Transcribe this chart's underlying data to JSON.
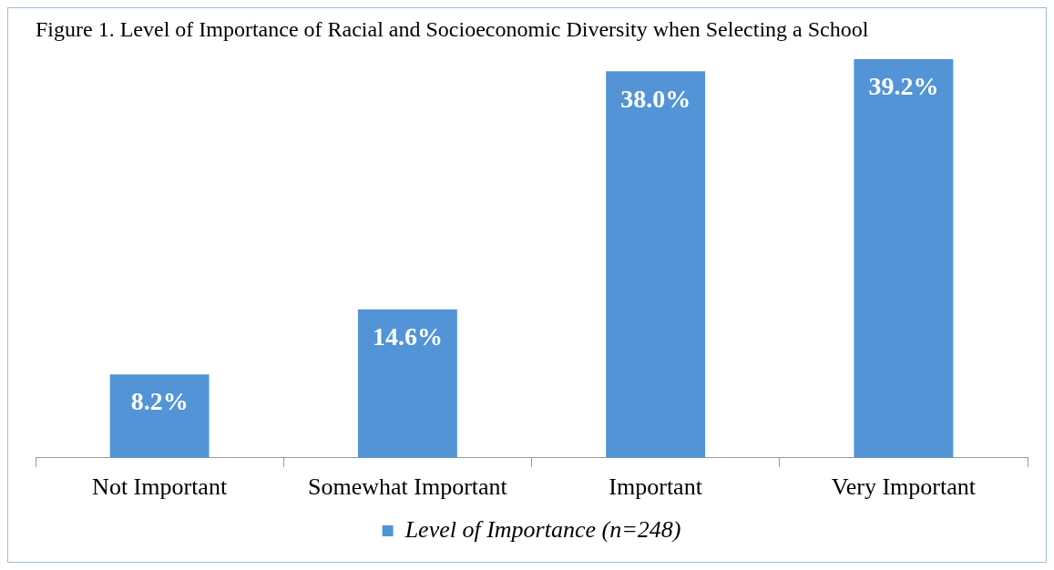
{
  "chart_data": {
    "type": "bar",
    "title": "Figure 1. Level of Importance of Racial and Socioeconomic Diversity when Selecting a School",
    "categories": [
      "Not Important",
      "Somewhat Important",
      "Important",
      "Very Important"
    ],
    "series": [
      {
        "name": "Level of Importance (n=248)",
        "color": "#5294d6",
        "values": [
          8.2,
          14.6,
          38.0,
          39.2
        ],
        "value_labels": [
          "8.2%",
          "14.6%",
          "38.0%",
          "39.2%"
        ]
      }
    ],
    "legend": "bottom",
    "grid": false
  }
}
